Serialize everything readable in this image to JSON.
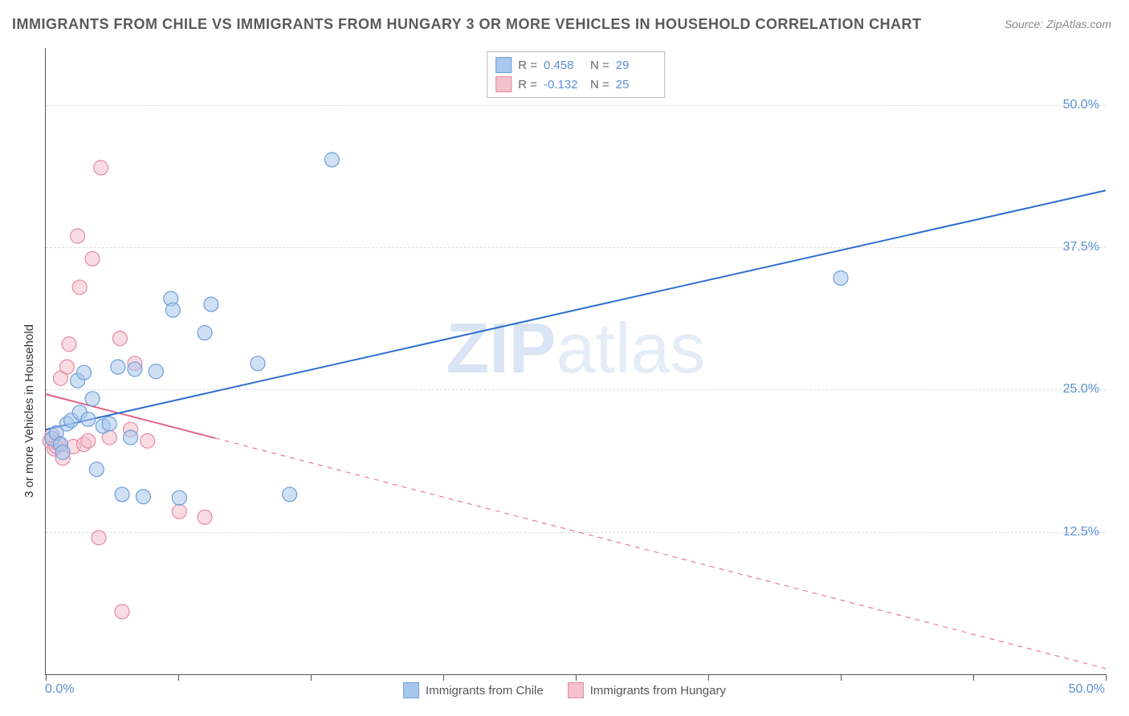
{
  "title": "IMMIGRANTS FROM CHILE VS IMMIGRANTS FROM HUNGARY 3 OR MORE VEHICLES IN HOUSEHOLD CORRELATION CHART",
  "source": "Source: ZipAtlas.com",
  "ylabel": "3 or more Vehicles in Household",
  "watermark_a": "ZIP",
  "watermark_b": "atlas",
  "chart": {
    "type": "scatter-with-regression",
    "xlim": [
      0,
      50
    ],
    "ylim": [
      0,
      55
    ],
    "xticks": [
      0,
      6.25,
      12.5,
      18.75,
      25,
      31.25,
      37.5,
      43.75,
      50
    ],
    "ygrid": [
      12.5,
      25.0,
      37.5,
      50.0
    ],
    "ygrid_labels": [
      "12.5%",
      "25.0%",
      "37.5%",
      "50.0%"
    ],
    "xlabel_min": "0.0%",
    "xlabel_max": "50.0%",
    "grid_color": "#dcdcdc",
    "background_color": "#ffffff",
    "axis_color": "#555555",
    "label_color": "#5b8fd6",
    "label_fontsize": 16,
    "title_fontsize": 18,
    "title_color": "#5a5a5a",
    "marker_radius": 9,
    "marker_opacity": 0.55,
    "line_width": 2
  },
  "series": {
    "chile": {
      "label": "Immigrants from Chile",
      "color_fill": "#a8c7ec",
      "color_stroke": "#6d9fd8",
      "line_color": "#2e6ecf",
      "R": "0.458",
      "N": "29",
      "reg_start": [
        0,
        21.5
      ],
      "reg_end": [
        50,
        42.5
      ],
      "reg_dash_from_x": null,
      "points": [
        [
          0.3,
          20.7
        ],
        [
          0.5,
          21.2
        ],
        [
          0.7,
          20.2
        ],
        [
          0.8,
          19.5
        ],
        [
          1.0,
          22.0
        ],
        [
          1.2,
          22.3
        ],
        [
          1.5,
          25.8
        ],
        [
          1.6,
          23.0
        ],
        [
          1.8,
          26.5
        ],
        [
          2.0,
          22.4
        ],
        [
          2.2,
          24.2
        ],
        [
          2.4,
          18.0
        ],
        [
          2.7,
          21.8
        ],
        [
          3.0,
          22.0
        ],
        [
          3.4,
          27.0
        ],
        [
          3.6,
          15.8
        ],
        [
          4.0,
          20.8
        ],
        [
          4.2,
          26.8
        ],
        [
          4.6,
          15.6
        ],
        [
          5.2,
          26.6
        ],
        [
          5.9,
          33.0
        ],
        [
          6.0,
          32.0
        ],
        [
          6.3,
          15.5
        ],
        [
          7.5,
          30.0
        ],
        [
          7.8,
          32.5
        ],
        [
          10.0,
          27.3
        ],
        [
          11.5,
          15.8
        ],
        [
          13.5,
          45.2
        ],
        [
          37.5,
          34.8
        ]
      ]
    },
    "hungary": {
      "label": "Immigrants from Hungary",
      "color_fill": "#f3c0cb",
      "color_stroke": "#e78aa1",
      "line_color": "#e26184",
      "R": "-0.132",
      "N": "25",
      "reg_start": [
        0,
        24.6
      ],
      "reg_end": [
        50,
        0.5
      ],
      "reg_dash_from_x": 8.0,
      "points": [
        [
          0.2,
          20.5
        ],
        [
          0.3,
          21.0
        ],
        [
          0.4,
          19.8
        ],
        [
          0.5,
          20.0
        ],
        [
          0.6,
          20.3
        ],
        [
          0.7,
          26.0
        ],
        [
          0.8,
          19.0
        ],
        [
          1.0,
          27.0
        ],
        [
          1.1,
          29.0
        ],
        [
          1.3,
          20.0
        ],
        [
          1.5,
          38.5
        ],
        [
          1.6,
          34.0
        ],
        [
          1.8,
          20.2
        ],
        [
          2.0,
          20.5
        ],
        [
          2.2,
          36.5
        ],
        [
          2.5,
          12.0
        ],
        [
          2.6,
          44.5
        ],
        [
          3.0,
          20.8
        ],
        [
          3.5,
          29.5
        ],
        [
          3.6,
          5.5
        ],
        [
          4.2,
          27.3
        ],
        [
          4.8,
          20.5
        ],
        [
          6.3,
          14.3
        ],
        [
          7.5,
          13.8
        ],
        [
          4.0,
          21.5
        ]
      ]
    }
  },
  "legend_top": {
    "r_label": "R  =",
    "n_label": "N  ="
  },
  "legend_bottom": {
    "chile": "Immigrants from Chile",
    "hungary": "Immigrants from Hungary"
  }
}
